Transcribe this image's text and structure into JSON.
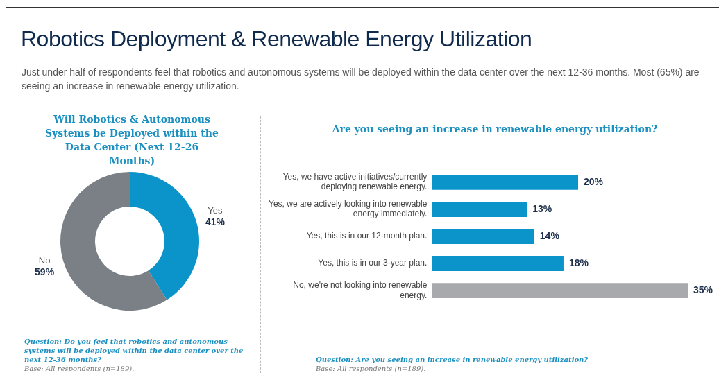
{
  "chart_data": [
    {
      "type": "other",
      "title": "Robotics Deployment & Renewable Energy Utilization",
      "subtitle": "Just under half of respondents feel that robotics and autonomous systems will be deployed within the data center over the next 12-36 months. Most (65%) are seeing an increase in renewable energy utilization."
    },
    {
      "type": "donut",
      "title": "Will Robotics & Autonomous Systems be Deployed within the Data Center (Next 12-26 Months)",
      "categories": [
        "Yes",
        "No"
      ],
      "values": [
        41,
        59
      ],
      "colors": [
        "#0b94c9",
        "#7b8086"
      ],
      "value_labels": [
        "41%",
        "59%"
      ],
      "annotations": [
        "Question: Do you feel that robotics and autonomous systems will be deployed within the data center over the next 12-36 months?",
        "Base: All respondents (n=189)."
      ]
    },
    {
      "type": "bar",
      "orientation": "horizontal",
      "title": "Are you seeing an increase in renewable energy utilization?",
      "categories": [
        "Yes, we have active initiatives/currently deploying renewable energy.",
        "Yes, we are actively looking into renewable energy immediately.",
        "Yes, this is in our 12-month plan.",
        "Yes, this is in our 3-year plan.",
        "No, we're not looking into renewable energy."
      ],
      "values": [
        20,
        13,
        14,
        18,
        35
      ],
      "colors": [
        "#0b94c9",
        "#0b94c9",
        "#0b94c9",
        "#0b94c9",
        "#a7a9ac"
      ],
      "value_labels": [
        "20%",
        "13%",
        "14%",
        "18%",
        "35%"
      ],
      "annotations": [
        "Question: Are you seeing an increase in renewable energy utilization?",
        "Base: All respondents (n=189)."
      ]
    }
  ]
}
